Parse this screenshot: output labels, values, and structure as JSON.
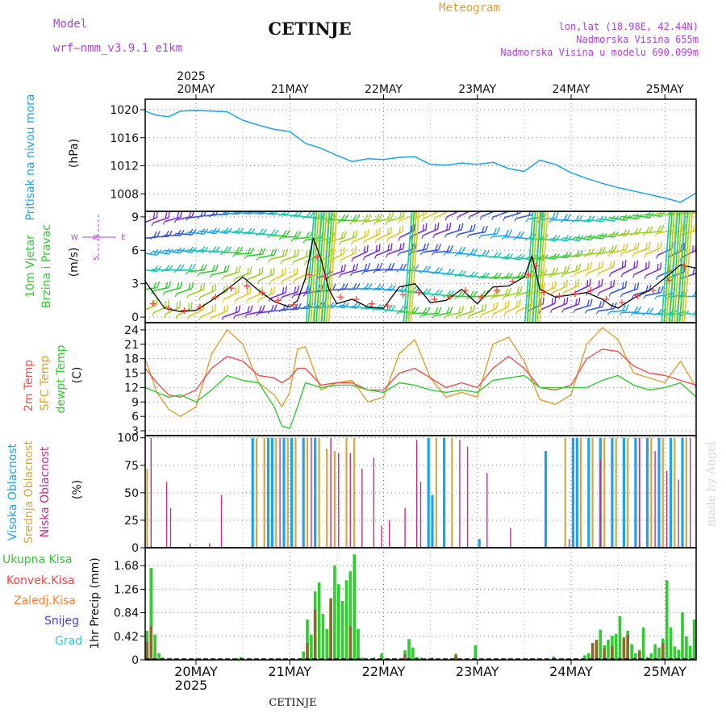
{
  "header": {
    "model_label": "Model",
    "model_name": "wrf–nmm_v3.9.1  e1km",
    "station": "CETINJE",
    "product": "Meteogram",
    "lonlat": "lon,lat (18.98E, 42.44N)",
    "elevation": "Nadmorska Visina 655m",
    "model_elevation": "Nadmorska Visina u modelu 690.099m",
    "footer_station": "CETINJE",
    "watermark": "made by Angel"
  },
  "colors": {
    "pressure": "#1ca3ec",
    "wind_speed": "#000000",
    "wind_gust": "#ff4040",
    "temp_2m": "#f05050",
    "temp_sfc": "#e0a030",
    "dewpoint": "#30cc30",
    "cloud_high": "#1ca3ec",
    "cloud_mid": "#d8a840",
    "cloud_low": "#c0308a",
    "precip_total": "#30cc30",
    "precip_conv": "#ff4040",
    "precip_freezing": "#ff8030",
    "precip_snow": "#4040e0",
    "precip_hail": "#30c8c8",
    "axis_labels": "#b040e0"
  },
  "time_axis": {
    "year": "2025",
    "day_labels": [
      "20MAY",
      "21MAY",
      "22MAY",
      "23MAY",
      "24MAY",
      "25MAY"
    ],
    "start_hour_offset": -13,
    "end_hour_offset": 128
  },
  "chart_data": [
    {
      "type": "line",
      "title": "Pritisak na nivou mora",
      "ylabel": "(hPa)",
      "ylim": [
        1005.5,
        1021.5
      ],
      "yticks": [
        "1020",
        "1016",
        "1012",
        "1008"
      ],
      "grid": true,
      "series": [
        {
          "name": "Pritisak na nivou mora",
          "x": [
            -13,
            -10,
            -7,
            -4,
            0,
            4,
            8,
            12,
            16,
            20,
            24,
            28,
            32,
            36,
            40,
            44,
            48,
            52,
            56,
            60,
            64,
            68,
            72,
            76,
            80,
            84,
            88,
            92,
            96,
            100,
            104,
            108,
            112,
            116,
            120,
            124,
            128
          ],
          "values": [
            1019.8,
            1019.2,
            1019.0,
            1019.8,
            1019.9,
            1019.8,
            1019.7,
            1018.5,
            1017.8,
            1017.2,
            1016.9,
            1015.2,
            1014.5,
            1013.5,
            1012.6,
            1013.0,
            1012.9,
            1013.2,
            1013.3,
            1012.2,
            1012.1,
            1012.4,
            1012.2,
            1012.5,
            1011.6,
            1011.2,
            1012.8,
            1012.2,
            1011.0,
            1010.2,
            1009.5,
            1008.9,
            1008.4,
            1007.9,
            1007.4,
            1006.8,
            1008.1
          ]
        }
      ]
    },
    {
      "type": "line",
      "title": "10m Vjetar Brzina i Pravac",
      "ylabel": "(m/s)",
      "ylim": [
        -0.5,
        9.5
      ],
      "yticks": [
        "9",
        "6",
        "3",
        "0"
      ],
      "grid": true,
      "compass": {
        "n": "N",
        "s": "S",
        "e": "E",
        "w": "W"
      },
      "series": [
        {
          "name": "Brzina",
          "x": [
            -13,
            -8,
            -4,
            0,
            4,
            8,
            12,
            16,
            20,
            24,
            26,
            28,
            30,
            32,
            34,
            36,
            40,
            44,
            48,
            52,
            56,
            60,
            64,
            68,
            72,
            76,
            80,
            84,
            86,
            88,
            92,
            96,
            100,
            104,
            106,
            108,
            112,
            116,
            120,
            124,
            128
          ],
          "values": [
            3.2,
            0.8,
            0.5,
            0.6,
            1.5,
            2.5,
            3.6,
            2.4,
            1.4,
            0.9,
            1.5,
            3.5,
            7.1,
            5.2,
            2.5,
            1.2,
            1.6,
            0.9,
            0.8,
            2.7,
            3.0,
            1.3,
            1.5,
            2.5,
            1.2,
            2.7,
            2.8,
            3.6,
            5.5,
            2.5,
            1.8,
            2.0,
            2.2,
            1.6,
            1.1,
            0.8,
            1.7,
            2.4,
            3.5,
            4.7,
            4.4
          ]
        },
        {
          "name": "Udari",
          "x": [
            -11,
            -7,
            -3,
            1,
            5,
            9,
            13,
            17,
            21,
            25,
            29,
            31,
            33,
            37,
            41,
            45,
            49,
            53,
            57,
            61,
            65,
            69,
            73,
            77,
            81,
            85,
            87,
            89,
            93,
            97,
            101,
            105,
            109,
            113,
            117,
            121,
            125
          ],
          "values": [
            1.2,
            0.8,
            0.6,
            0.9,
            1.8,
            2.6,
            2.8,
            2.2,
            1.5,
            1.1,
            3.8,
            5.4,
            3.6,
            1.8,
            1.6,
            1.2,
            1.0,
            2.0,
            2.2,
            1.6,
            1.8,
            2.4,
            1.8,
            2.4,
            3.2,
            3.8,
            4.6,
            2.2,
            1.9,
            2.1,
            2.4,
            1.6,
            1.3,
            1.9,
            2.4,
            3.3,
            4.6
          ]
        }
      ]
    },
    {
      "type": "line",
      "title": "2m Temp / SFC Temp / dewpt Temp",
      "ylabel": "(C)",
      "ylim": [
        2,
        25.5
      ],
      "yticks": [
        "24",
        "21",
        "18",
        "15",
        "12",
        "9",
        "6",
        "3"
      ],
      "grid": true,
      "series": [
        {
          "name": "2m Temp",
          "x": [
            -13,
            -10,
            -7,
            -4,
            0,
            4,
            8,
            12,
            16,
            20,
            22,
            24,
            26,
            28,
            32,
            36,
            40,
            44,
            48,
            52,
            56,
            60,
            64,
            68,
            72,
            76,
            80,
            84,
            88,
            92,
            96,
            100,
            104,
            108,
            112,
            116,
            120,
            124,
            128
          ],
          "values": [
            16.0,
            13.0,
            10.5,
            10.0,
            11.5,
            16.0,
            18.5,
            17.5,
            14.5,
            14.0,
            13.0,
            14.0,
            16.0,
            16.0,
            12.5,
            13.0,
            13.0,
            11.5,
            11.5,
            15.0,
            16.0,
            14.0,
            12.0,
            13.0,
            12.0,
            16.0,
            18.5,
            16.0,
            12.0,
            11.5,
            12.5,
            18.0,
            20.0,
            19.5,
            16.5,
            15.0,
            14.5,
            13.5,
            12.5
          ]
        },
        {
          "name": "SFC Temp",
          "x": [
            -13,
            -10,
            -7,
            -4,
            0,
            4,
            8,
            12,
            16,
            20,
            22,
            24,
            26,
            28,
            32,
            36,
            40,
            44,
            48,
            52,
            56,
            60,
            64,
            68,
            72,
            76,
            80,
            84,
            88,
            92,
            96,
            100,
            104,
            108,
            112,
            116,
            120,
            124,
            128
          ],
          "values": [
            18.0,
            11.0,
            7.5,
            6.0,
            8.0,
            19.0,
            24.0,
            21.0,
            13.0,
            10.5,
            8.0,
            11.0,
            20.0,
            20.5,
            11.5,
            13.0,
            13.5,
            9.0,
            10.0,
            19.0,
            22.0,
            14.0,
            10.0,
            11.0,
            10.0,
            21.0,
            22.5,
            17.5,
            9.5,
            8.5,
            10.5,
            21.0,
            24.5,
            22.0,
            15.0,
            14.0,
            13.0,
            17.5,
            12.0
          ]
        },
        {
          "name": "dewpt Temp",
          "x": [
            -13,
            -10,
            -7,
            -4,
            0,
            4,
            8,
            12,
            16,
            20,
            22,
            24,
            26,
            28,
            32,
            36,
            40,
            44,
            48,
            52,
            56,
            60,
            64,
            68,
            72,
            76,
            80,
            84,
            88,
            92,
            96,
            100,
            104,
            108,
            112,
            116,
            120,
            124,
            128
          ],
          "values": [
            12.0,
            11.0,
            10.0,
            10.5,
            9.0,
            11.5,
            14.5,
            13.5,
            13.0,
            8.0,
            4.0,
            3.5,
            8.0,
            13.0,
            12.0,
            12.5,
            12.5,
            11.5,
            11.0,
            13.0,
            12.5,
            11.5,
            11.0,
            11.5,
            11.0,
            13.5,
            14.0,
            14.5,
            12.0,
            12.0,
            12.0,
            12.0,
            13.5,
            14.5,
            12.5,
            11.5,
            12.0,
            13.0,
            10.0
          ]
        }
      ]
    },
    {
      "type": "bar",
      "title": "Visoka Oblacnost / Srednja Oblacnost / Niska Oblacnost",
      "ylabel": "(%)",
      "ylim": [
        0,
        102
      ],
      "yticks": [
        "100",
        "75",
        "50",
        "25",
        "0"
      ],
      "grid": true,
      "series": [
        {
          "name": "Visoka Oblacnost",
          "x": [
            14.5,
            18.5,
            19.5,
            22.5,
            24.5,
            27.5,
            30.5,
            59.5,
            60.5,
            63.5,
            72.5,
            89.5,
            96.5,
            97.5,
            100.5,
            103.5,
            106.5,
            109.5,
            112.5,
            115.5,
            118.5,
            121.5,
            124.5
          ],
          "values": [
            100,
            100,
            100,
            100,
            100,
            100,
            100,
            100,
            48,
            100,
            8,
            88,
            100,
            100,
            100,
            100,
            100,
            100,
            100,
            100,
            100,
            100,
            100
          ]
        },
        {
          "name": "Srednja Oblacnost",
          "x": [
            -12.5,
            15.5,
            17.5,
            20.5,
            23.5,
            25.5,
            28.5,
            31.5,
            33.5,
            35.5,
            38.5,
            40.5,
            61.5,
            65.5,
            94.5,
            98.5,
            101.5,
            104.5,
            107.5,
            110.5,
            113.5,
            116.5,
            119.5,
            122.5,
            125.5
          ],
          "values": [
            72,
            100,
            100,
            100,
            100,
            100,
            100,
            100,
            90,
            88,
            100,
            100,
            100,
            100,
            100,
            100,
            100,
            100,
            100,
            100,
            100,
            100,
            100,
            100,
            100
          ]
        },
        {
          "name": "Niska Oblacnost",
          "x": [
            -11.5,
            -7.5,
            -6.5,
            -1.5,
            3.5,
            6.5,
            21.5,
            29.5,
            34.5,
            36.5,
            39.5,
            42.5,
            45.5,
            47.5,
            49.5,
            53.5,
            56.5,
            57.5,
            67.5,
            69.5,
            74.5,
            80.5,
            95.5,
            103.5,
            113.5,
            117.5,
            120.5,
            123.5,
            126.5
          ],
          "values": [
            100,
            60,
            36,
            4,
            4,
            48,
            100,
            100,
            100,
            86,
            86,
            72,
            82,
            20,
            25,
            36,
            98,
            60,
            98,
            92,
            68,
            18,
            8,
            80,
            100,
            88,
            70,
            62,
            100
          ]
        }
      ]
    },
    {
      "type": "bar",
      "title": "1hr Precip",
      "ylabel": "1hr Precip (mm)",
      "ylim": [
        0,
        2.0
      ],
      "yticks": [
        "1.68",
        "1.26",
        "0.84",
        "0.42",
        "0"
      ],
      "grid": true,
      "legend": [
        "Ukupna Kisa",
        "Konvek.Kisa",
        "Zaledj.Kisa",
        "Snijeg",
        "Grad"
      ],
      "series": [
        {
          "name": "Ukupna Kisa",
          "x": [
            -12.5,
            -11.5,
            -10.5,
            -9.5,
            -8.5,
            10.5,
            11.5,
            27.5,
            28.5,
            29.5,
            30.5,
            31.5,
            32.5,
            33.5,
            34.5,
            35.5,
            36.5,
            37.5,
            38.5,
            39.5,
            40.5,
            41.5,
            42.5,
            45.5,
            47.5,
            53.5,
            54.5,
            55.5,
            56.5,
            57.5,
            60.5,
            66.5,
            71.5,
            91.5,
            99.5,
            100.5,
            101.5,
            102.5,
            103.5,
            104.5,
            105.5,
            106.5,
            107.5,
            108.5,
            109.5,
            110.5,
            111.5,
            112.5,
            113.5,
            114.5,
            115.5,
            116.5,
            117.5,
            118.5,
            119.5,
            120.5,
            121.5,
            122.5,
            123.5,
            124.5,
            125.5,
            126.5,
            127.5
          ],
          "values": [
            0.52,
            1.64,
            0.45,
            0.12,
            0.04,
            0.03,
            0.05,
            0.15,
            0.72,
            0.45,
            1.22,
            1.38,
            0.82,
            0.55,
            0.98,
            1.68,
            1.35,
            1.05,
            1.42,
            1.58,
            1.88,
            0.55,
            0.04,
            0.04,
            0.12,
            0.17,
            0.37,
            0.22,
            0.05,
            0.04,
            0.04,
            0.11,
            0.26,
            0.06,
            0.08,
            0.12,
            0.06,
            0.36,
            0.54,
            0.26,
            0.36,
            0.43,
            0.46,
            0.78,
            0.24,
            0.52,
            0.28,
            0.12,
            0.18,
            0.58,
            0.05,
            0.12,
            0.28,
            0.22,
            0.38,
            1.42,
            0.58,
            0.24,
            0.18,
            0.85,
            0.42,
            0.25,
            0.72
          ]
        },
        {
          "name": "Konvek.Kisa",
          "x": [
            -12.5,
            -11.5,
            28.5,
            30.5,
            34.5,
            39.5,
            53.5,
            66.5,
            101.5,
            102.5,
            104.5,
            106.5,
            109.5,
            110.5,
            113.5,
            119.5
          ],
          "values": [
            0.32,
            0.6,
            0.3,
            0.9,
            1.1,
            0.6,
            0.1,
            0.08,
            0.3,
            0.35,
            0.2,
            0.25,
            0.4,
            0.45,
            0.15,
            0.3
          ]
        }
      ]
    }
  ]
}
